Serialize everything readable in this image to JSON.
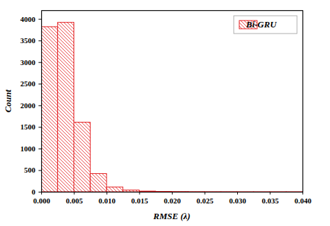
{
  "chart_data": {
    "type": "histogram",
    "x_label": "RMSE (λ)",
    "y_label": "Count",
    "bins": [
      0,
      0.0025,
      0.005,
      0.0075,
      0.01,
      0.0125,
      0.015,
      0.0175,
      0.02,
      0.0225,
      0.025,
      0.0275,
      0.03,
      0.0325,
      0.035,
      0.0375,
      0.04
    ],
    "series": [
      {
        "name": "Bi-GRU",
        "color": "#e31a1c",
        "values": [
          3820,
          3920,
          1610,
          420,
          110,
          40,
          15,
          8,
          5,
          3,
          2,
          2,
          1,
          1,
          1,
          1
        ]
      }
    ],
    "xlim": [
      0,
      0.04
    ],
    "xticks": [
      {
        "value": 0,
        "label": "0.000"
      },
      {
        "value": 0.005,
        "label": "0.005"
      },
      {
        "value": 0.01,
        "label": "0.010"
      },
      {
        "value": 0.015,
        "label": "0.015"
      },
      {
        "value": 0.02,
        "label": "0.020"
      },
      {
        "value": 0.025,
        "label": "0.025"
      },
      {
        "value": 0.03,
        "label": "0.030"
      },
      {
        "value": 0.035,
        "label": "0.035"
      },
      {
        "value": 0.04,
        "label": "0.040"
      }
    ],
    "ylim": [
      0,
      4200
    ],
    "yticks": [
      0,
      500,
      1000,
      1500,
      2000,
      2500,
      3000,
      3500,
      4000
    ],
    "legend": "upper-right",
    "grid": false
  }
}
